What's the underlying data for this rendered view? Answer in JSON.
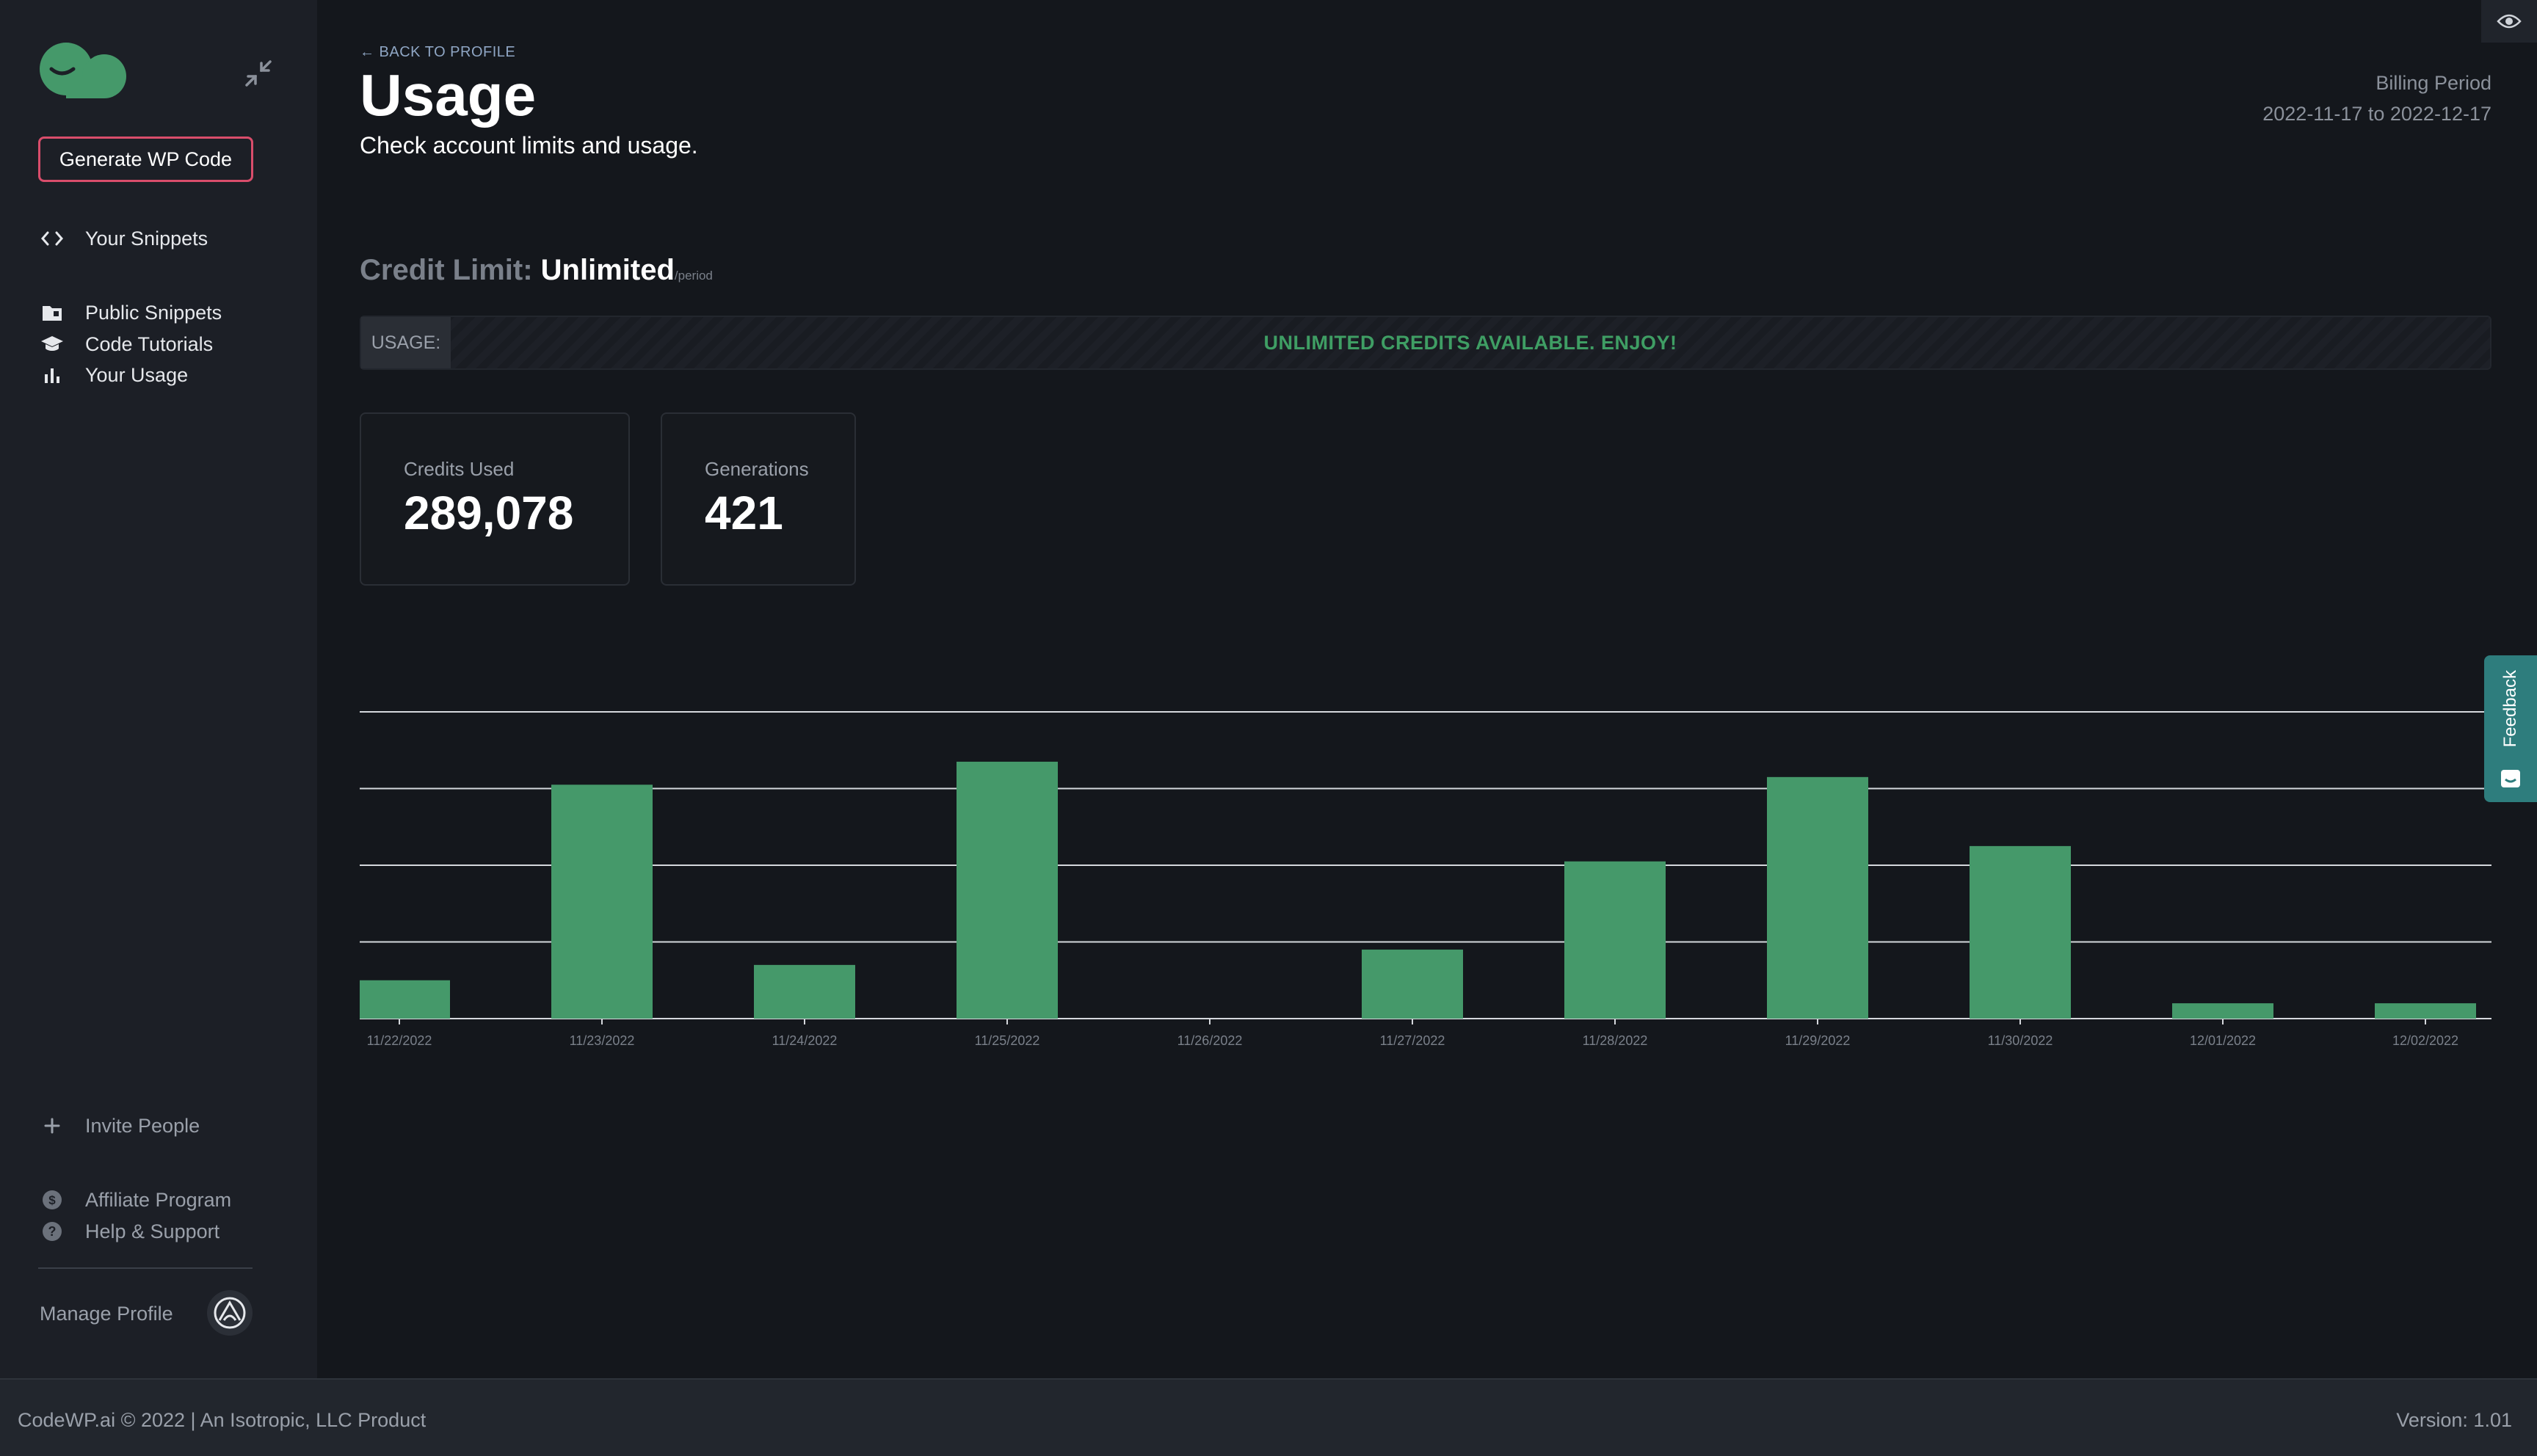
{
  "sidebar": {
    "generate_label": "Generate WP Code",
    "items": [
      {
        "label": "Your Snippets",
        "icon": "code-icon"
      },
      {
        "label": "Public Snippets",
        "icon": "folder-icon"
      },
      {
        "label": "Code Tutorials",
        "icon": "graduation-cap-icon"
      },
      {
        "label": "Your Usage",
        "icon": "bar-chart-icon"
      }
    ],
    "bottom_items": [
      {
        "label": "Invite People",
        "icon": "plus-icon"
      },
      {
        "label": "Affiliate Program",
        "icon": "dollar-icon"
      },
      {
        "label": "Help & Support",
        "icon": "question-icon"
      }
    ],
    "manage_label": "Manage Profile"
  },
  "header": {
    "back_label": "← BACK TO PROFILE",
    "title": "Usage",
    "subtitle": "Check account limits and usage.",
    "billing_label": "Billing Period",
    "billing_range": "2022-11-17 to 2022-12-17"
  },
  "credit": {
    "label": "Credit Limit:",
    "value": "Unlimited",
    "unit": "/period",
    "usage_label": "USAGE:",
    "usage_message": "UNLIMITED CREDITS AVAILABLE. ENJOY!"
  },
  "stats": [
    {
      "label": "Credits Used",
      "value": "289,078"
    },
    {
      "label": "Generations",
      "value": "421"
    }
  ],
  "chart_data": {
    "type": "bar",
    "categories": [
      "11/22/2022",
      "11/23/2022",
      "11/24/2022",
      "11/25/2022",
      "11/26/2022",
      "11/27/2022",
      "11/28/2022",
      "11/29/2022",
      "11/30/2022",
      "12/01/2022",
      "12/02/2022"
    ],
    "values": [
      5.0,
      30.5,
      7.0,
      33.5,
      0,
      9.0,
      20.5,
      31.5,
      22.5,
      2.0,
      2.0
    ],
    "ylim": [
      0,
      40
    ],
    "grid": true,
    "bar_color": "#45996a"
  },
  "feedback_label": "Feedback",
  "footer": {
    "left": "CodeWP.ai © 2022  | An Isotropic, LLC Product",
    "right": "Version: 1.01"
  }
}
